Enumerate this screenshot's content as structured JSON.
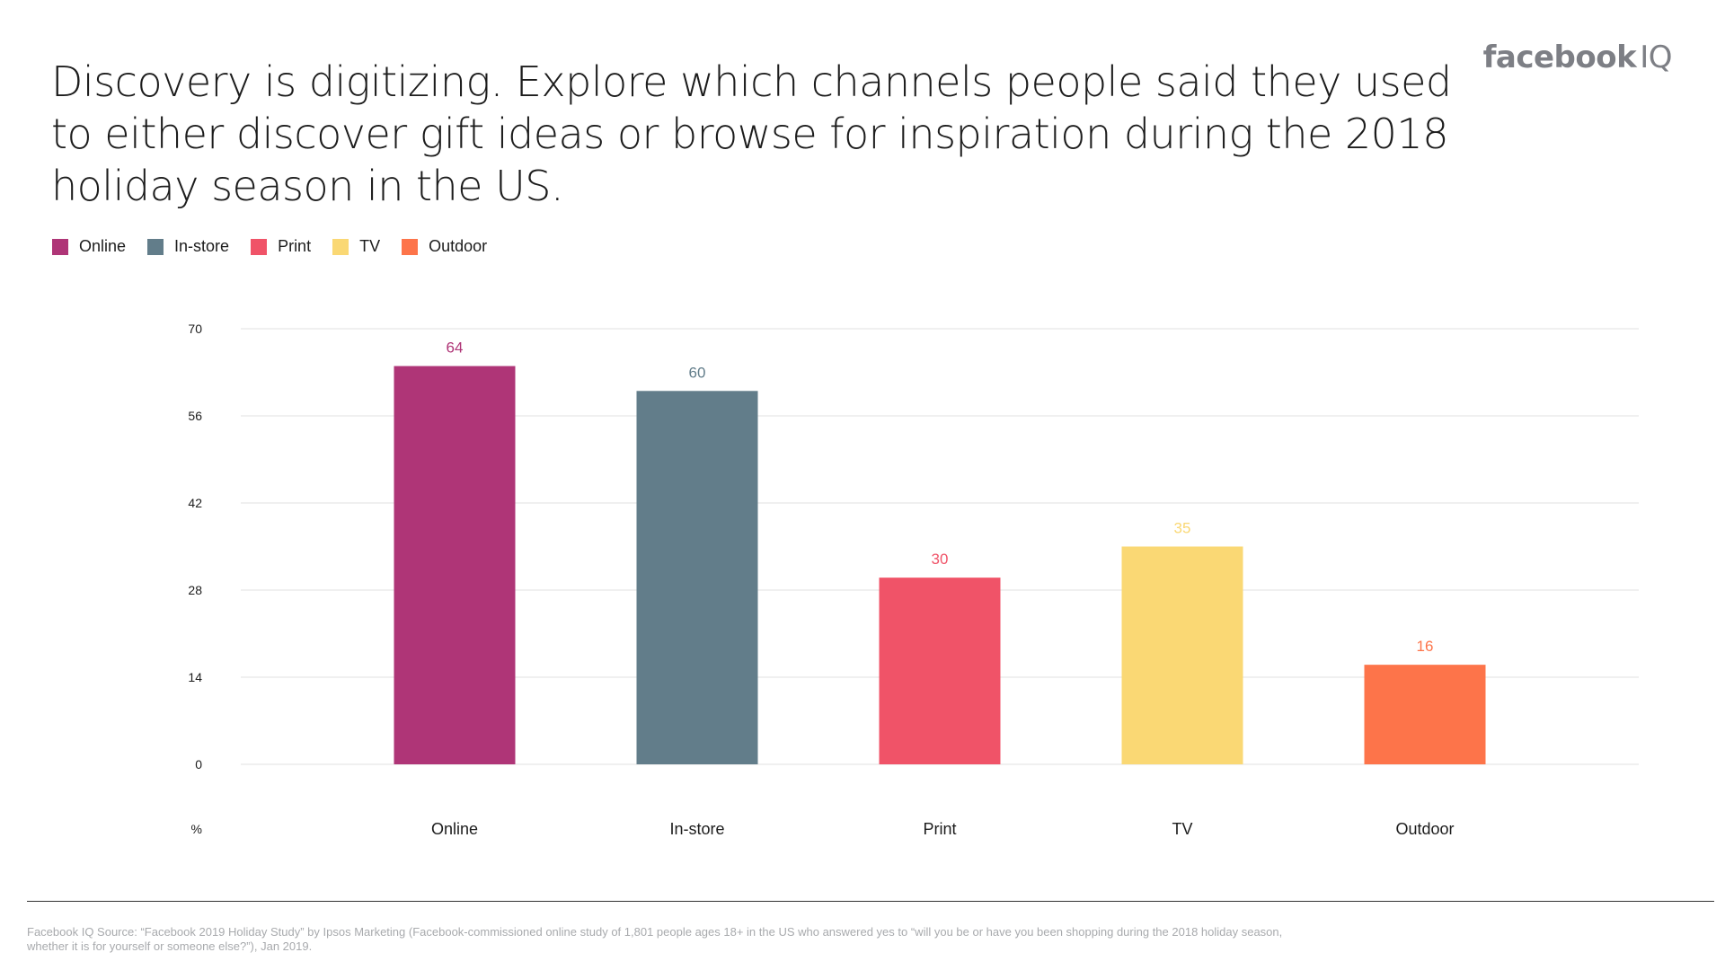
{
  "header": {
    "title": "Discovery is digitizing. Explore which channels people said they used to either discover gift ideas or browse for inspiration during the 2018 holiday season in the US.",
    "brand_bold": "facebook",
    "brand_light": "IQ",
    "brand_color": "#7d7f85"
  },
  "legend": {
    "items": [
      {
        "label": "Online",
        "color": "#AF3577"
      },
      {
        "label": "In-store",
        "color": "#627D8A"
      },
      {
        "label": "Print",
        "color": "#F05368"
      },
      {
        "label": "TV",
        "color": "#FAD874"
      },
      {
        "label": "Outdoor",
        "color": "#FD744A"
      }
    ]
  },
  "chart_data": {
    "type": "bar",
    "categories": [
      "Online",
      "In-store",
      "Print",
      "TV",
      "Outdoor"
    ],
    "values": [
      64,
      60,
      30,
      35,
      16
    ],
    "colors": [
      "#AF3577",
      "#627D8A",
      "#F05368",
      "#FAD874",
      "#FD744A"
    ],
    "yticks": [
      0,
      14,
      28,
      42,
      56,
      70
    ],
    "ylim": [
      0,
      70
    ],
    "ylabel": "%",
    "xlabel": "",
    "grid": true,
    "legend_position": "top-left"
  },
  "footer": {
    "source": "Facebook IQ Source: “Facebook 2019 Holiday Study” by Ipsos Marketing (Facebook-commissioned online study of 1,801 people ages 18+ in the US who answered yes to “will you be or have you been shopping during the 2018 holiday season, whether it is for yourself or someone else?”), Jan 2019."
  }
}
